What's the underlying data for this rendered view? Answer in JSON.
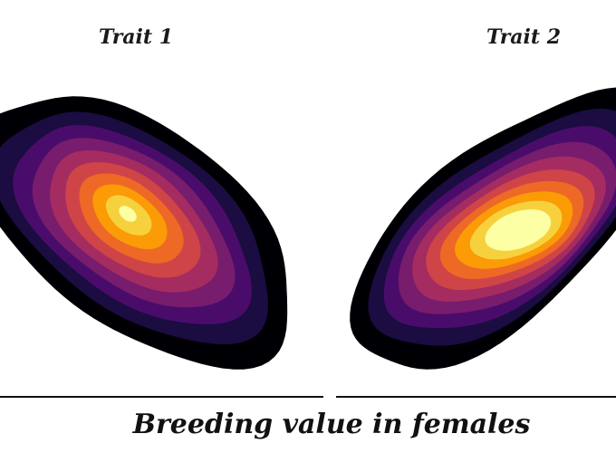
{
  "chart_data": {
    "type": "heatmap",
    "subtype": "2d-density-contour",
    "xlabel": "Breeding value in females",
    "ylabel": "",
    "grid": false,
    "legend": "none",
    "color_scale": "inferno",
    "contour_colors": [
      "#000004",
      "#1b0c41",
      "#4a0c6b",
      "#781c6d",
      "#a52c60",
      "#cf4446",
      "#ed6925",
      "#fb9b06",
      "#f7d13d",
      "#fcffa4"
    ],
    "panels": [
      {
        "title": "Trait 1",
        "correlation": "negative",
        "density_peak": "upper-center"
      },
      {
        "title": "Trait 2",
        "correlation": "positive",
        "density_peak": "center"
      }
    ]
  }
}
